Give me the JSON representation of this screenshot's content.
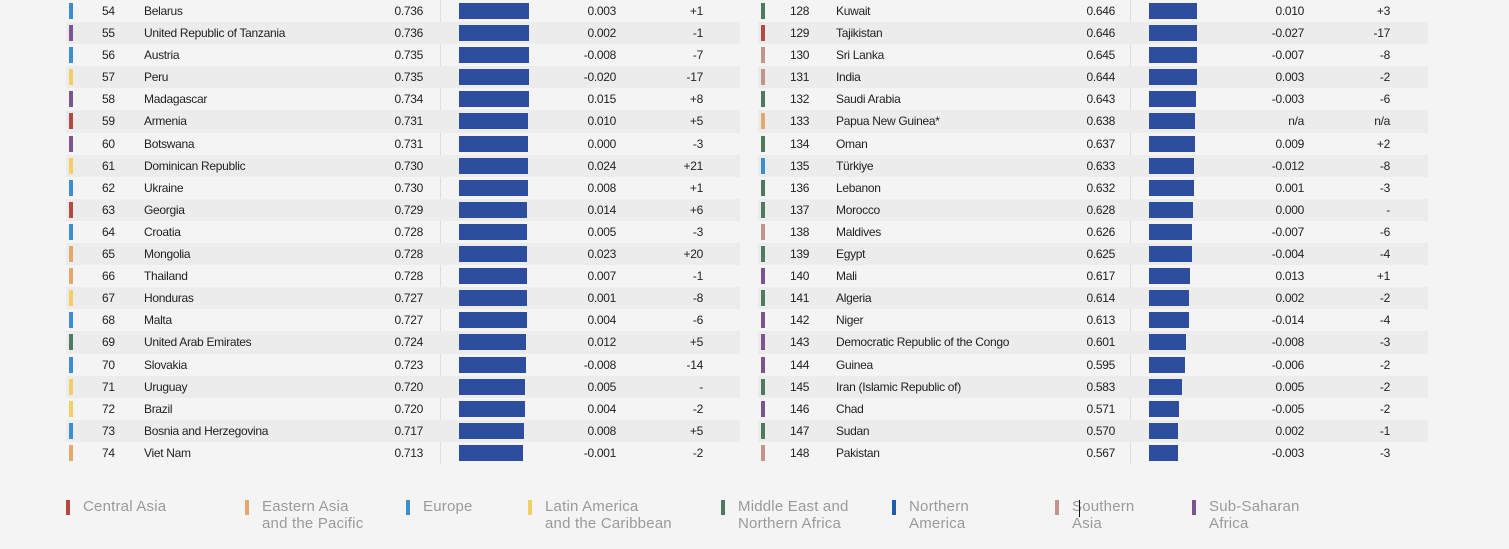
{
  "colors": {
    "bar": "#2d4e9e",
    "central_asia": "#b5483f",
    "eastern_asia": "#e3a86a",
    "europe": "#3b8fd0",
    "latin_america": "#f3cf63",
    "mena": "#4f7a62",
    "northern_america": "#1c5ea8",
    "southern_asia": "#c1958c",
    "sub_saharan": "#7b5590"
  },
  "left_table": [
    {
      "rank": "54",
      "country": "Belarus",
      "score": "0.736",
      "score_num": 0.736,
      "change": "0.003",
      "rank_change": "+1",
      "region": "europe"
    },
    {
      "rank": "55",
      "country": "United Republic of Tanzania",
      "score": "0.736",
      "score_num": 0.736,
      "change": "0.002",
      "rank_change": "-1",
      "region": "sub_saharan"
    },
    {
      "rank": "56",
      "country": "Austria",
      "score": "0.735",
      "score_num": 0.735,
      "change": "-0.008",
      "rank_change": "-7",
      "region": "europe"
    },
    {
      "rank": "57",
      "country": "Peru",
      "score": "0.735",
      "score_num": 0.735,
      "change": "-0.020",
      "rank_change": "-17",
      "region": "latin_america"
    },
    {
      "rank": "58",
      "country": "Madagascar",
      "score": "0.734",
      "score_num": 0.734,
      "change": "0.015",
      "rank_change": "+8",
      "region": "sub_saharan"
    },
    {
      "rank": "59",
      "country": "Armenia",
      "score": "0.731",
      "score_num": 0.731,
      "change": "0.010",
      "rank_change": "+5",
      "region": "central_asia"
    },
    {
      "rank": "60",
      "country": "Botswana",
      "score": "0.731",
      "score_num": 0.731,
      "change": "0.000",
      "rank_change": "-3",
      "region": "sub_saharan"
    },
    {
      "rank": "61",
      "country": "Dominican Republic",
      "score": "0.730",
      "score_num": 0.73,
      "change": "0.024",
      "rank_change": "+21",
      "region": "latin_america"
    },
    {
      "rank": "62",
      "country": "Ukraine",
      "score": "0.730",
      "score_num": 0.73,
      "change": "0.008",
      "rank_change": "+1",
      "region": "europe"
    },
    {
      "rank": "63",
      "country": "Georgia",
      "score": "0.729",
      "score_num": 0.729,
      "change": "0.014",
      "rank_change": "+6",
      "region": "central_asia"
    },
    {
      "rank": "64",
      "country": "Croatia",
      "score": "0.728",
      "score_num": 0.728,
      "change": "0.005",
      "rank_change": "-3",
      "region": "europe"
    },
    {
      "rank": "65",
      "country": "Mongolia",
      "score": "0.728",
      "score_num": 0.728,
      "change": "0.023",
      "rank_change": "+20",
      "region": "eastern_asia"
    },
    {
      "rank": "66",
      "country": "Thailand",
      "score": "0.728",
      "score_num": 0.728,
      "change": "0.007",
      "rank_change": "-1",
      "region": "eastern_asia"
    },
    {
      "rank": "67",
      "country": "Honduras",
      "score": "0.727",
      "score_num": 0.727,
      "change": "0.001",
      "rank_change": "-8",
      "region": "latin_america"
    },
    {
      "rank": "68",
      "country": "Malta",
      "score": "0.727",
      "score_num": 0.727,
      "change": "0.004",
      "rank_change": "-6",
      "region": "europe"
    },
    {
      "rank": "69",
      "country": "United Arab Emirates",
      "score": "0.724",
      "score_num": 0.724,
      "change": "0.012",
      "rank_change": "+5",
      "region": "mena"
    },
    {
      "rank": "70",
      "country": "Slovakia",
      "score": "0.723",
      "score_num": 0.723,
      "change": "-0.008",
      "rank_change": "-14",
      "region": "europe"
    },
    {
      "rank": "71",
      "country": "Uruguay",
      "score": "0.720",
      "score_num": 0.72,
      "change": "0.005",
      "rank_change": "-",
      "region": "latin_america"
    },
    {
      "rank": "72",
      "country": "Brazil",
      "score": "0.720",
      "score_num": 0.72,
      "change": "0.004",
      "rank_change": "-2",
      "region": "latin_america"
    },
    {
      "rank": "73",
      "country": "Bosnia and Herzegovina",
      "score": "0.717",
      "score_num": 0.717,
      "change": "0.008",
      "rank_change": "+5",
      "region": "europe"
    },
    {
      "rank": "74",
      "country": "Viet Nam",
      "score": "0.713",
      "score_num": 0.713,
      "change": "-0.001",
      "rank_change": "-2",
      "region": "eastern_asia"
    }
  ],
  "right_table": [
    {
      "rank": "128",
      "country": "Kuwait",
      "score": "0.646",
      "score_num": 0.646,
      "change": "0.010",
      "rank_change": "+3",
      "region": "mena"
    },
    {
      "rank": "129",
      "country": "Tajikistan",
      "score": "0.646",
      "score_num": 0.646,
      "change": "-0.027",
      "rank_change": "-17",
      "region": "central_asia"
    },
    {
      "rank": "130",
      "country": "Sri Lanka",
      "score": "0.645",
      "score_num": 0.645,
      "change": "-0.007",
      "rank_change": "-8",
      "region": "southern_asia"
    },
    {
      "rank": "131",
      "country": "India",
      "score": "0.644",
      "score_num": 0.644,
      "change": "0.003",
      "rank_change": "-2",
      "region": "southern_asia"
    },
    {
      "rank": "132",
      "country": "Saudi Arabia",
      "score": "0.643",
      "score_num": 0.643,
      "change": "-0.003",
      "rank_change": "-6",
      "region": "mena"
    },
    {
      "rank": "133",
      "country": "Papua New Guinea*",
      "score": "0.638",
      "score_num": 0.638,
      "change": "n/a",
      "rank_change": "n/a",
      "region": "eastern_asia"
    },
    {
      "rank": "134",
      "country": "Oman",
      "score": "0.637",
      "score_num": 0.637,
      "change": "0.009",
      "rank_change": "+2",
      "region": "mena"
    },
    {
      "rank": "135",
      "country": "Türkiye",
      "score": "0.633",
      "score_num": 0.633,
      "change": "-0.012",
      "rank_change": "-8",
      "region": "europe"
    },
    {
      "rank": "136",
      "country": "Lebanon",
      "score": "0.632",
      "score_num": 0.632,
      "change": "0.001",
      "rank_change": "-3",
      "region": "mena"
    },
    {
      "rank": "137",
      "country": "Morocco",
      "score": "0.628",
      "score_num": 0.628,
      "change": "0.000",
      "rank_change": "-",
      "region": "mena"
    },
    {
      "rank": "138",
      "country": "Maldives",
      "score": "0.626",
      "score_num": 0.626,
      "change": "-0.007",
      "rank_change": "-6",
      "region": "southern_asia"
    },
    {
      "rank": "139",
      "country": "Egypt",
      "score": "0.625",
      "score_num": 0.625,
      "change": "-0.004",
      "rank_change": "-4",
      "region": "mena"
    },
    {
      "rank": "140",
      "country": "Mali",
      "score": "0.617",
      "score_num": 0.617,
      "change": "0.013",
      "rank_change": "+1",
      "region": "sub_saharan"
    },
    {
      "rank": "141",
      "country": "Algeria",
      "score": "0.614",
      "score_num": 0.614,
      "change": "0.002",
      "rank_change": "-2",
      "region": "mena"
    },
    {
      "rank": "142",
      "country": "Niger",
      "score": "0.613",
      "score_num": 0.613,
      "change": "-0.014",
      "rank_change": "-4",
      "region": "sub_saharan"
    },
    {
      "rank": "143",
      "country": "Democratic Republic of the Congo",
      "score": "0.601",
      "score_num": 0.601,
      "change": "-0.008",
      "rank_change": "-3",
      "region": "sub_saharan"
    },
    {
      "rank": "144",
      "country": "Guinea",
      "score": "0.595",
      "score_num": 0.595,
      "change": "-0.006",
      "rank_change": "-2",
      "region": "sub_saharan"
    },
    {
      "rank": "145",
      "country": "Iran (Islamic Republic of)",
      "score": "0.583",
      "score_num": 0.583,
      "change": "0.005",
      "rank_change": "-2",
      "region": "mena"
    },
    {
      "rank": "146",
      "country": "Chad",
      "score": "0.571",
      "score_num": 0.571,
      "change": "-0.005",
      "rank_change": "-2",
      "region": "sub_saharan"
    },
    {
      "rank": "147",
      "country": "Sudan",
      "score": "0.570",
      "score_num": 0.57,
      "change": "0.002",
      "rank_change": "-1",
      "region": "mena"
    },
    {
      "rank": "148",
      "country": "Pakistan",
      "score": "0.567",
      "score_num": 0.567,
      "change": "-0.003",
      "rank_change": "-3",
      "region": "southern_asia"
    }
  ],
  "legend": [
    {
      "key": "central_asia",
      "line1": "Central Asia",
      "line2": ""
    },
    {
      "key": "eastern_asia",
      "line1": "Eastern Asia",
      "line2": "and the Pacific"
    },
    {
      "key": "europe",
      "line1": "Europe",
      "line2": ""
    },
    {
      "key": "latin_america",
      "line1": "Latin America",
      "line2": "and the Caribbean"
    },
    {
      "key": "mena",
      "line1": "Middle East and",
      "line2": "Northern Africa"
    },
    {
      "key": "northern_america",
      "line1": "Northern",
      "line2": "America"
    },
    {
      "key": "southern_asia",
      "line1": "Southern",
      "line2": "Asia"
    },
    {
      "key": "sub_saharan",
      "line1": "Sub-Saharan",
      "line2": "Africa"
    }
  ]
}
